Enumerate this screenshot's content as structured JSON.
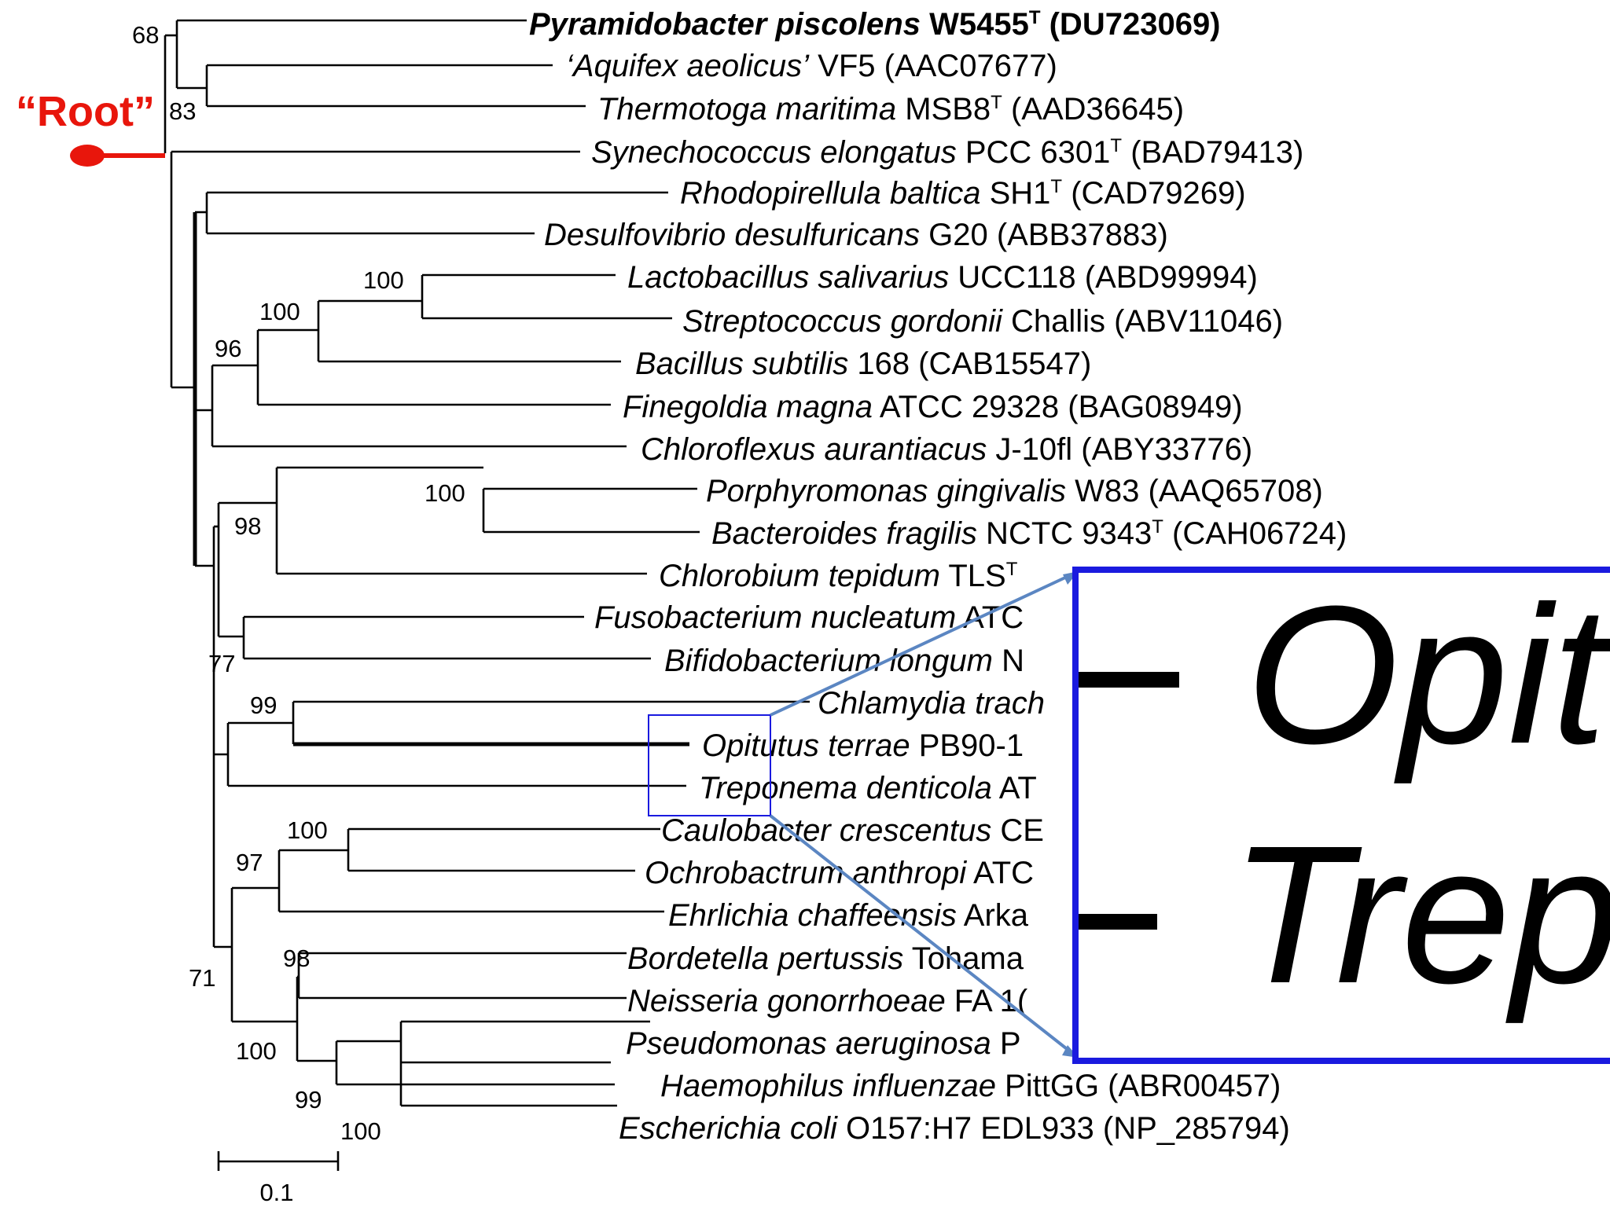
{
  "root_label": "“Root”",
  "colors": {
    "root_marker": "#e8160c",
    "zoom_border": "#1a1adf",
    "zoom_arrow": "#5b86c2",
    "branch": "#000000"
  },
  "taxa": [
    {
      "italic": "Pyramidobacter piscolens",
      "rest": " W5455",
      "sup": "T",
      "tail": " (DU723069)",
      "bold": true
    },
    {
      "italic": "‘Aquifex aeolicus’",
      "rest": "  VF5 (AAC07677)",
      "sup": "",
      "tail": ""
    },
    {
      "italic": "Thermotoga maritima",
      "rest": " MSB8",
      "sup": "T",
      "tail": " (AAD36645)"
    },
    {
      "italic": "Synechococcus elongatus",
      "rest": " PCC 6301",
      "sup": "T",
      "tail": " (BAD79413)"
    },
    {
      "italic": "Rhodopirellula baltica",
      "rest": " SH1",
      "sup": "T",
      "tail": " (CAD79269)"
    },
    {
      "italic": "Desulfovibrio desulfuricans",
      "rest": "  G20 (ABB37883)",
      "sup": "",
      "tail": ""
    },
    {
      "italic": "Lactobacillus salivarius",
      "rest": " UCC118 (ABD99994)",
      "sup": "",
      "tail": ""
    },
    {
      "italic": "Streptococcus gordonii",
      "rest": " Challis (ABV11046)",
      "sup": "",
      "tail": ""
    },
    {
      "italic": "Bacillus subtilis",
      "rest": " 168 (CAB15547)",
      "sup": "",
      "tail": ""
    },
    {
      "italic": "Finegoldia magna",
      "rest": " ATCC 29328 (BAG08949)",
      "sup": "",
      "tail": ""
    },
    {
      "italic": "Chloroflexus aurantiacus",
      "rest": " J-10fl (ABY33776)",
      "sup": "",
      "tail": ""
    },
    {
      "italic": "Porphyromonas gingivalis",
      "rest": " W83 (AAQ65708)",
      "sup": "",
      "tail": ""
    },
    {
      "italic": "Bacteroides fragilis",
      "rest": " NCTC 9343",
      "sup": "T",
      "tail": " (CAH06724)"
    },
    {
      "italic": "Chlorobium tepidum",
      "rest": " TLS",
      "sup": "T",
      "tail": ""
    },
    {
      "italic": "Fusobacterium nucleatum",
      "rest": " ATC",
      "sup": "",
      "tail": ""
    },
    {
      "italic": "Bifidobacterium longum",
      "rest": " N",
      "sup": "",
      "tail": ""
    },
    {
      "italic": "Chlamydia trach",
      "rest": "",
      "sup": "",
      "tail": ""
    },
    {
      "italic": "Opitutus terrae",
      "rest": " PB90-1",
      "sup": "",
      "tail": ""
    },
    {
      "italic": "Treponema denticola",
      "rest": " AT",
      "sup": "",
      "tail": ""
    },
    {
      "italic": "Caulobacter crescentus",
      "rest": " CE",
      "sup": "",
      "tail": ""
    },
    {
      "italic": "Ochrobactrum anthropi",
      "rest": " ATC",
      "sup": "",
      "tail": ""
    },
    {
      "italic": "Ehrlichia chaffeensis",
      "rest": " Arka",
      "sup": "",
      "tail": ""
    },
    {
      "italic": "Bordetella pertussis",
      "rest": " Tohama",
      "sup": "",
      "tail": ""
    },
    {
      "italic": "Neisseria gonorrhoeae",
      "rest": " FA 1(",
      "sup": "",
      "tail": ""
    },
    {
      "italic": "Pseudomonas aeruginosa",
      "rest": " P",
      "sup": "",
      "tail": ""
    },
    {
      "italic": "Haemophilus influenzae",
      "rest": " PittGG (ABR00457)",
      "sup": "",
      "tail": ""
    },
    {
      "italic": "Escherichia coli",
      "rest": " O157:H7 EDL933 (NP_285794)",
      "sup": "",
      "tail": ""
    }
  ],
  "bootstrap": [
    "68",
    "83",
    "100",
    "100",
    "96",
    "100",
    "98",
    "77",
    "99",
    "100",
    "97",
    "98",
    "71",
    "100",
    "99",
    "100"
  ],
  "scale_bar": {
    "label": "0.1"
  },
  "zoom_inset": {
    "line1": "Opit",
    "line2": "Trep"
  }
}
